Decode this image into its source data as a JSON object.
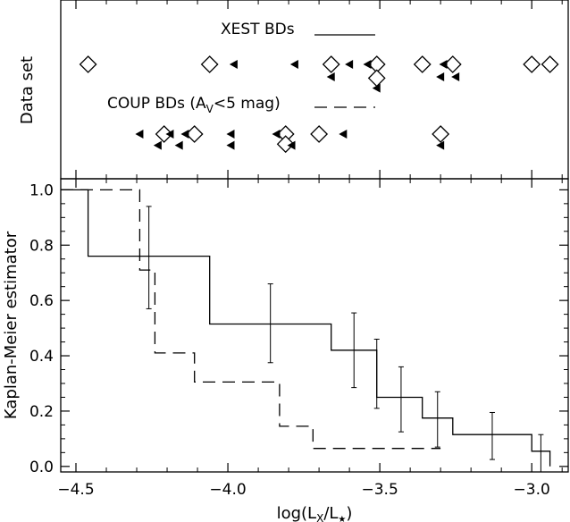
{
  "chart_data": [
    {
      "type": "scatter",
      "panel": "top",
      "ylabel": "Data set",
      "xlim": [
        -4.55,
        -2.88
      ],
      "legend": [
        {
          "label": "XEST BDs",
          "line_style": "solid"
        },
        {
          "label_main": "COUP BDs (A",
          "label_sub": "V",
          "label_rest": "<5 mag)",
          "line_style": "dashed"
        }
      ],
      "series": [
        {
          "name": "XEST BDs",
          "detections": [
            {
              "x": -4.46,
              "row": 0
            },
            {
              "x": -4.06,
              "row": 0
            },
            {
              "x": -3.66,
              "row": 0
            },
            {
              "x": -3.51,
              "row": 0
            },
            {
              "x": -3.51,
              "row": 0.55
            },
            {
              "x": -3.36,
              "row": 0
            },
            {
              "x": -3.26,
              "row": 0
            },
            {
              "x": -3.0,
              "row": 0
            },
            {
              "x": -2.94,
              "row": 0
            }
          ],
          "upper_limits": [
            {
              "x": -3.98,
              "row": 0
            },
            {
              "x": -3.78,
              "row": 0
            },
            {
              "x": -3.6,
              "row": 0
            },
            {
              "x": -3.54,
              "row": 0
            },
            {
              "x": -3.29,
              "row": 0
            },
            {
              "x": -3.66,
              "row": 0.5
            },
            {
              "x": -3.3,
              "row": 0.5
            },
            {
              "x": -3.25,
              "row": 0.5
            },
            {
              "x": -3.51,
              "row": 0.95
            }
          ]
        },
        {
          "name": "COUP BDs (AV<5 mag)",
          "detections": [
            {
              "x": -4.21,
              "row": 0
            },
            {
              "x": -4.11,
              "row": 0
            },
            {
              "x": -3.81,
              "row": 0
            },
            {
              "x": -3.81,
              "row": 0.4
            },
            {
              "x": -3.7,
              "row": 0
            },
            {
              "x": -3.3,
              "row": 0
            }
          ],
          "upper_limits": [
            {
              "x": -4.29,
              "row": 0
            },
            {
              "x": -4.19,
              "row": 0
            },
            {
              "x": -4.14,
              "row": 0
            },
            {
              "x": -3.99,
              "row": 0
            },
            {
              "x": -3.84,
              "row": 0
            },
            {
              "x": -3.62,
              "row": 0
            },
            {
              "x": -4.23,
              "row": 0.45
            },
            {
              "x": -4.16,
              "row": 0.45
            },
            {
              "x": -3.99,
              "row": 0.45
            },
            {
              "x": -3.79,
              "row": 0.45
            },
            {
              "x": -3.3,
              "row": 0.45
            }
          ]
        }
      ]
    },
    {
      "type": "line",
      "panel": "bottom",
      "xlabel_main": "log(L",
      "xlabel_sub1": "X",
      "xlabel_mid": "/L",
      "xlabel_sub2": "★",
      "xlabel_end": ")",
      "ylabel": "Kaplan-Meier estimator",
      "xlim": [
        -4.55,
        -2.88
      ],
      "ylim": [
        -0.02,
        1.04
      ],
      "x_ticks": [
        -4.5,
        -4.0,
        -3.5,
        -3.0
      ],
      "x_tick_labels": [
        "−4.5",
        "−4.0",
        "−3.5",
        "−3.0"
      ],
      "y_ticks": [
        0.0,
        0.2,
        0.4,
        0.6,
        0.8,
        1.0
      ],
      "y_tick_labels": [
        "0.0",
        "0.2",
        "0.4",
        "0.6",
        "0.8",
        "1.0"
      ],
      "series": [
        {
          "name": "XEST BDs",
          "style": "solid",
          "x": [
            -4.55,
            -4.46,
            -4.46,
            -4.06,
            -4.06,
            -3.66,
            -3.66,
            -3.51,
            -3.51,
            -3.36,
            -3.36,
            -3.26,
            -3.26,
            -3.0,
            -3.0,
            -2.94,
            -2.94
          ],
          "y": [
            1.0,
            1.0,
            0.76,
            0.76,
            0.515,
            0.515,
            0.42,
            0.42,
            0.25,
            0.25,
            0.175,
            0.175,
            0.115,
            0.115,
            0.055,
            0.055,
            0.0
          ],
          "error_bars": [
            {
              "x": -4.26,
              "y": 0.76,
              "low": 0.57,
              "high": 0.94
            },
            {
              "x": -3.86,
              "y": 0.515,
              "low": 0.375,
              "high": 0.66
            },
            {
              "x": -3.585,
              "y": 0.42,
              "low": 0.285,
              "high": 0.555
            },
            {
              "x": -3.51,
              "y": 0.335,
              "low": 0.21,
              "high": 0.46
            },
            {
              "x": -3.43,
              "y": 0.25,
              "low": 0.125,
              "high": 0.36
            },
            {
              "x": -3.31,
              "y": 0.175,
              "low": 0.07,
              "high": 0.27
            },
            {
              "x": -3.13,
              "y": 0.115,
              "low": 0.025,
              "high": 0.195
            },
            {
              "x": -2.97,
              "y": 0.055,
              "low": -0.02,
              "high": 0.115
            }
          ]
        },
        {
          "name": "COUP BDs (AV<5 mag)",
          "style": "dashed",
          "x": [
            -4.55,
            -4.29,
            -4.29,
            -4.24,
            -4.24,
            -4.19,
            -4.19,
            -4.11,
            -4.11,
            -3.83,
            -3.83,
            -3.72,
            -3.72,
            -3.3
          ],
          "y": [
            1.0,
            1.0,
            0.71,
            0.71,
            0.41,
            0.41,
            0.41,
            0.41,
            0.305,
            0.305,
            0.145,
            0.145,
            0.065,
            0.065
          ]
        }
      ]
    }
  ]
}
